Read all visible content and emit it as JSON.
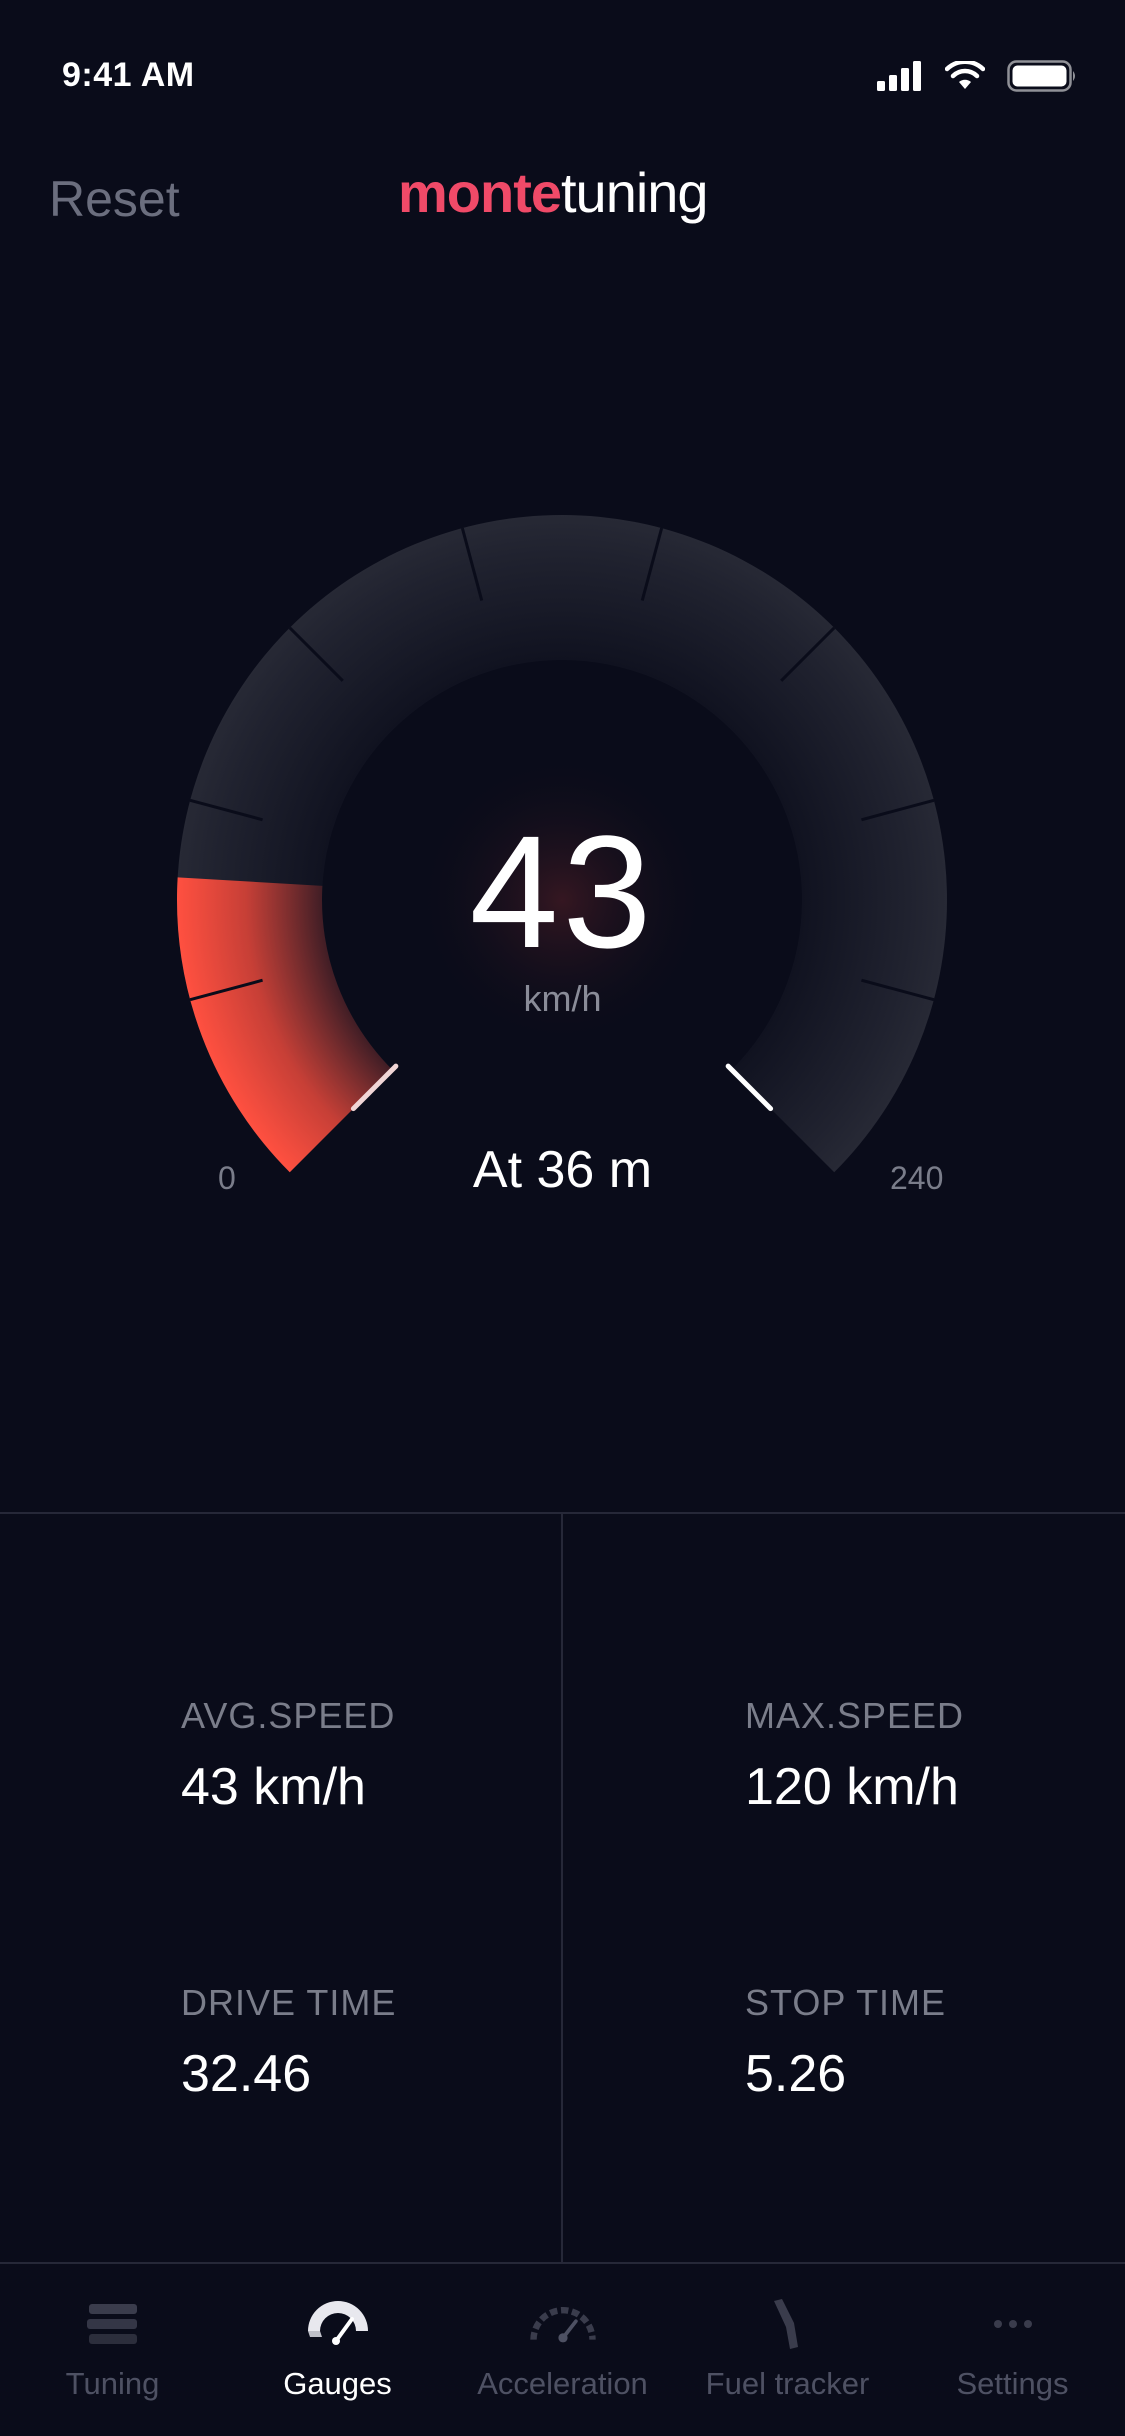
{
  "status_bar": {
    "time": "9:41 AM"
  },
  "header": {
    "reset_label": "Reset",
    "logo_brand": "monte",
    "logo_rest": "tuning"
  },
  "gauge": {
    "speed": "43",
    "unit": "km/h",
    "min_label": "0",
    "max_label": "240",
    "min": 0,
    "max": 240,
    "current": 43,
    "distance_text": "At 36 m"
  },
  "stats": {
    "avg_speed": {
      "label": "AVG.SPEED",
      "value": "43 km/h"
    },
    "max_speed": {
      "label": "MAX.SPEED",
      "value": "120 km/h"
    },
    "drive_time": {
      "label": "DRIVE TIME",
      "value": "32.46"
    },
    "stop_time": {
      "label": "STOP TIME",
      "value": "5.26"
    }
  },
  "tabs": [
    {
      "label": "Tuning",
      "icon": "tuning-icon",
      "active": false
    },
    {
      "label": "Gauges",
      "icon": "gauge-icon",
      "active": true
    },
    {
      "label": "Acceleration",
      "icon": "speedometer-icon",
      "active": false
    },
    {
      "label": "Fuel tracker",
      "icon": "fuel-nozzle-icon",
      "active": false
    },
    {
      "label": "Settings",
      "icon": "more-dots-icon",
      "active": false
    }
  ],
  "colors": {
    "background": "#0a0c1a",
    "accent": "#ff4a3a",
    "brand": "#f04a68"
  }
}
